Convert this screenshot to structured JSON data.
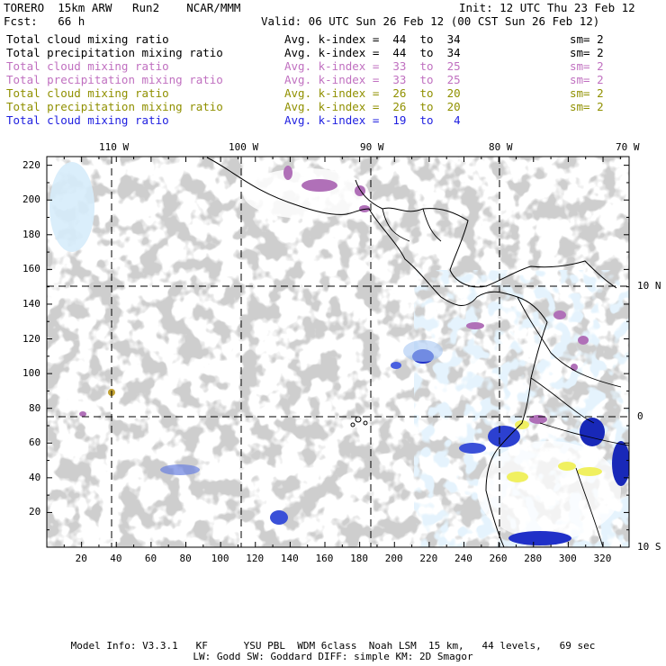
{
  "header": {
    "model": "TORERO  15km ARW   Run2    NCAR/MMM",
    "init": "Init: 12 UTC Thu 23 Feb 12",
    "fcst": "Fcst:   66 h",
    "valid": "Valid: 06 UTC Sun 26 Feb 12 (00 CST Sun 26 Feb 12)"
  },
  "legend": [
    {
      "field": "Total cloud mixing ratio",
      "kindex": "Avg. k-index =  44  to  34",
      "sm": "sm= 2",
      "color": "#000000"
    },
    {
      "field": "Total precipitation mixing ratio",
      "kindex": "Avg. k-index =  44  to  34",
      "sm": "sm= 2",
      "color": "#000000"
    },
    {
      "field": "Total cloud mixing ratio",
      "kindex": "Avg. k-index =  33  to  25",
      "sm": "sm= 2",
      "color": "#c070c0"
    },
    {
      "field": "Total precipitation mixing ratio",
      "kindex": "Avg. k-index =  33  to  25",
      "sm": "sm= 2",
      "color": "#c070c0"
    },
    {
      "field": "Total cloud mixing ratio",
      "kindex": "Avg. k-index =  26  to  20",
      "sm": "sm= 2",
      "color": "#909000"
    },
    {
      "field": "Total precipitation mixing ratio",
      "kindex": "Avg. k-index =  26  to  20",
      "sm": "sm= 2",
      "color": "#909000"
    },
    {
      "field": "Total cloud mixing ratio",
      "kindex": "Avg. k-index =  19  to   4",
      "sm": "",
      "color": "#2020e0"
    }
  ],
  "map": {
    "longitude_labels": [
      "110 W",
      "100 W",
      "90 W",
      "80 W",
      "70 W"
    ],
    "latitude_labels": [
      "10 N",
      "0",
      "10 S"
    ],
    "x_ticks": [
      "20",
      "40",
      "60",
      "80",
      "100",
      "120",
      "140",
      "160",
      "180",
      "200",
      "220",
      "240",
      "260",
      "280",
      "300",
      "320"
    ],
    "y_ticks": [
      "220",
      "200",
      "180",
      "160",
      "140",
      "120",
      "100",
      "80",
      "60",
      "40",
      "20"
    ]
  },
  "footer": {
    "line1": "Model Info: V3.3.1   KF      YSU PBL  WDM 6class  Noah LSM  15 km,   44 levels,   69 sec",
    "line2": "LW: Godd SW: Goddard DIFF: simple KM: 2D Smagor"
  }
}
